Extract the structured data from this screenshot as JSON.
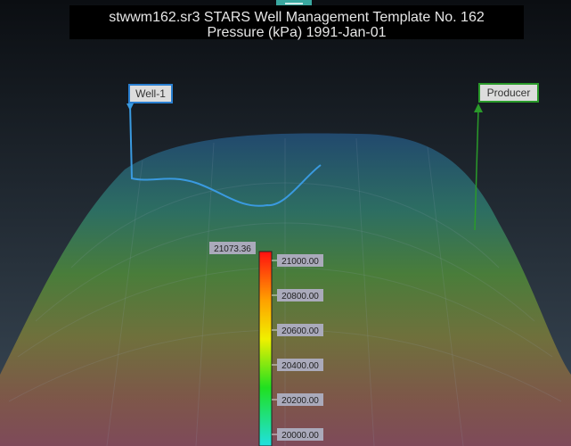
{
  "header": {
    "title": "stwwm162.sr3 STARS Well Management Template No. 162",
    "subtitle": "Pressure (kPa)  1991-Jan-01"
  },
  "wells": [
    {
      "label": "Well-1"
    },
    {
      "label": "Producer"
    }
  ],
  "colorbar": {
    "max_label": "21073.36",
    "ticks": [
      "21000.00",
      "20800.00",
      "20600.00",
      "20400.00",
      "20200.00",
      "20000.00"
    ]
  }
}
